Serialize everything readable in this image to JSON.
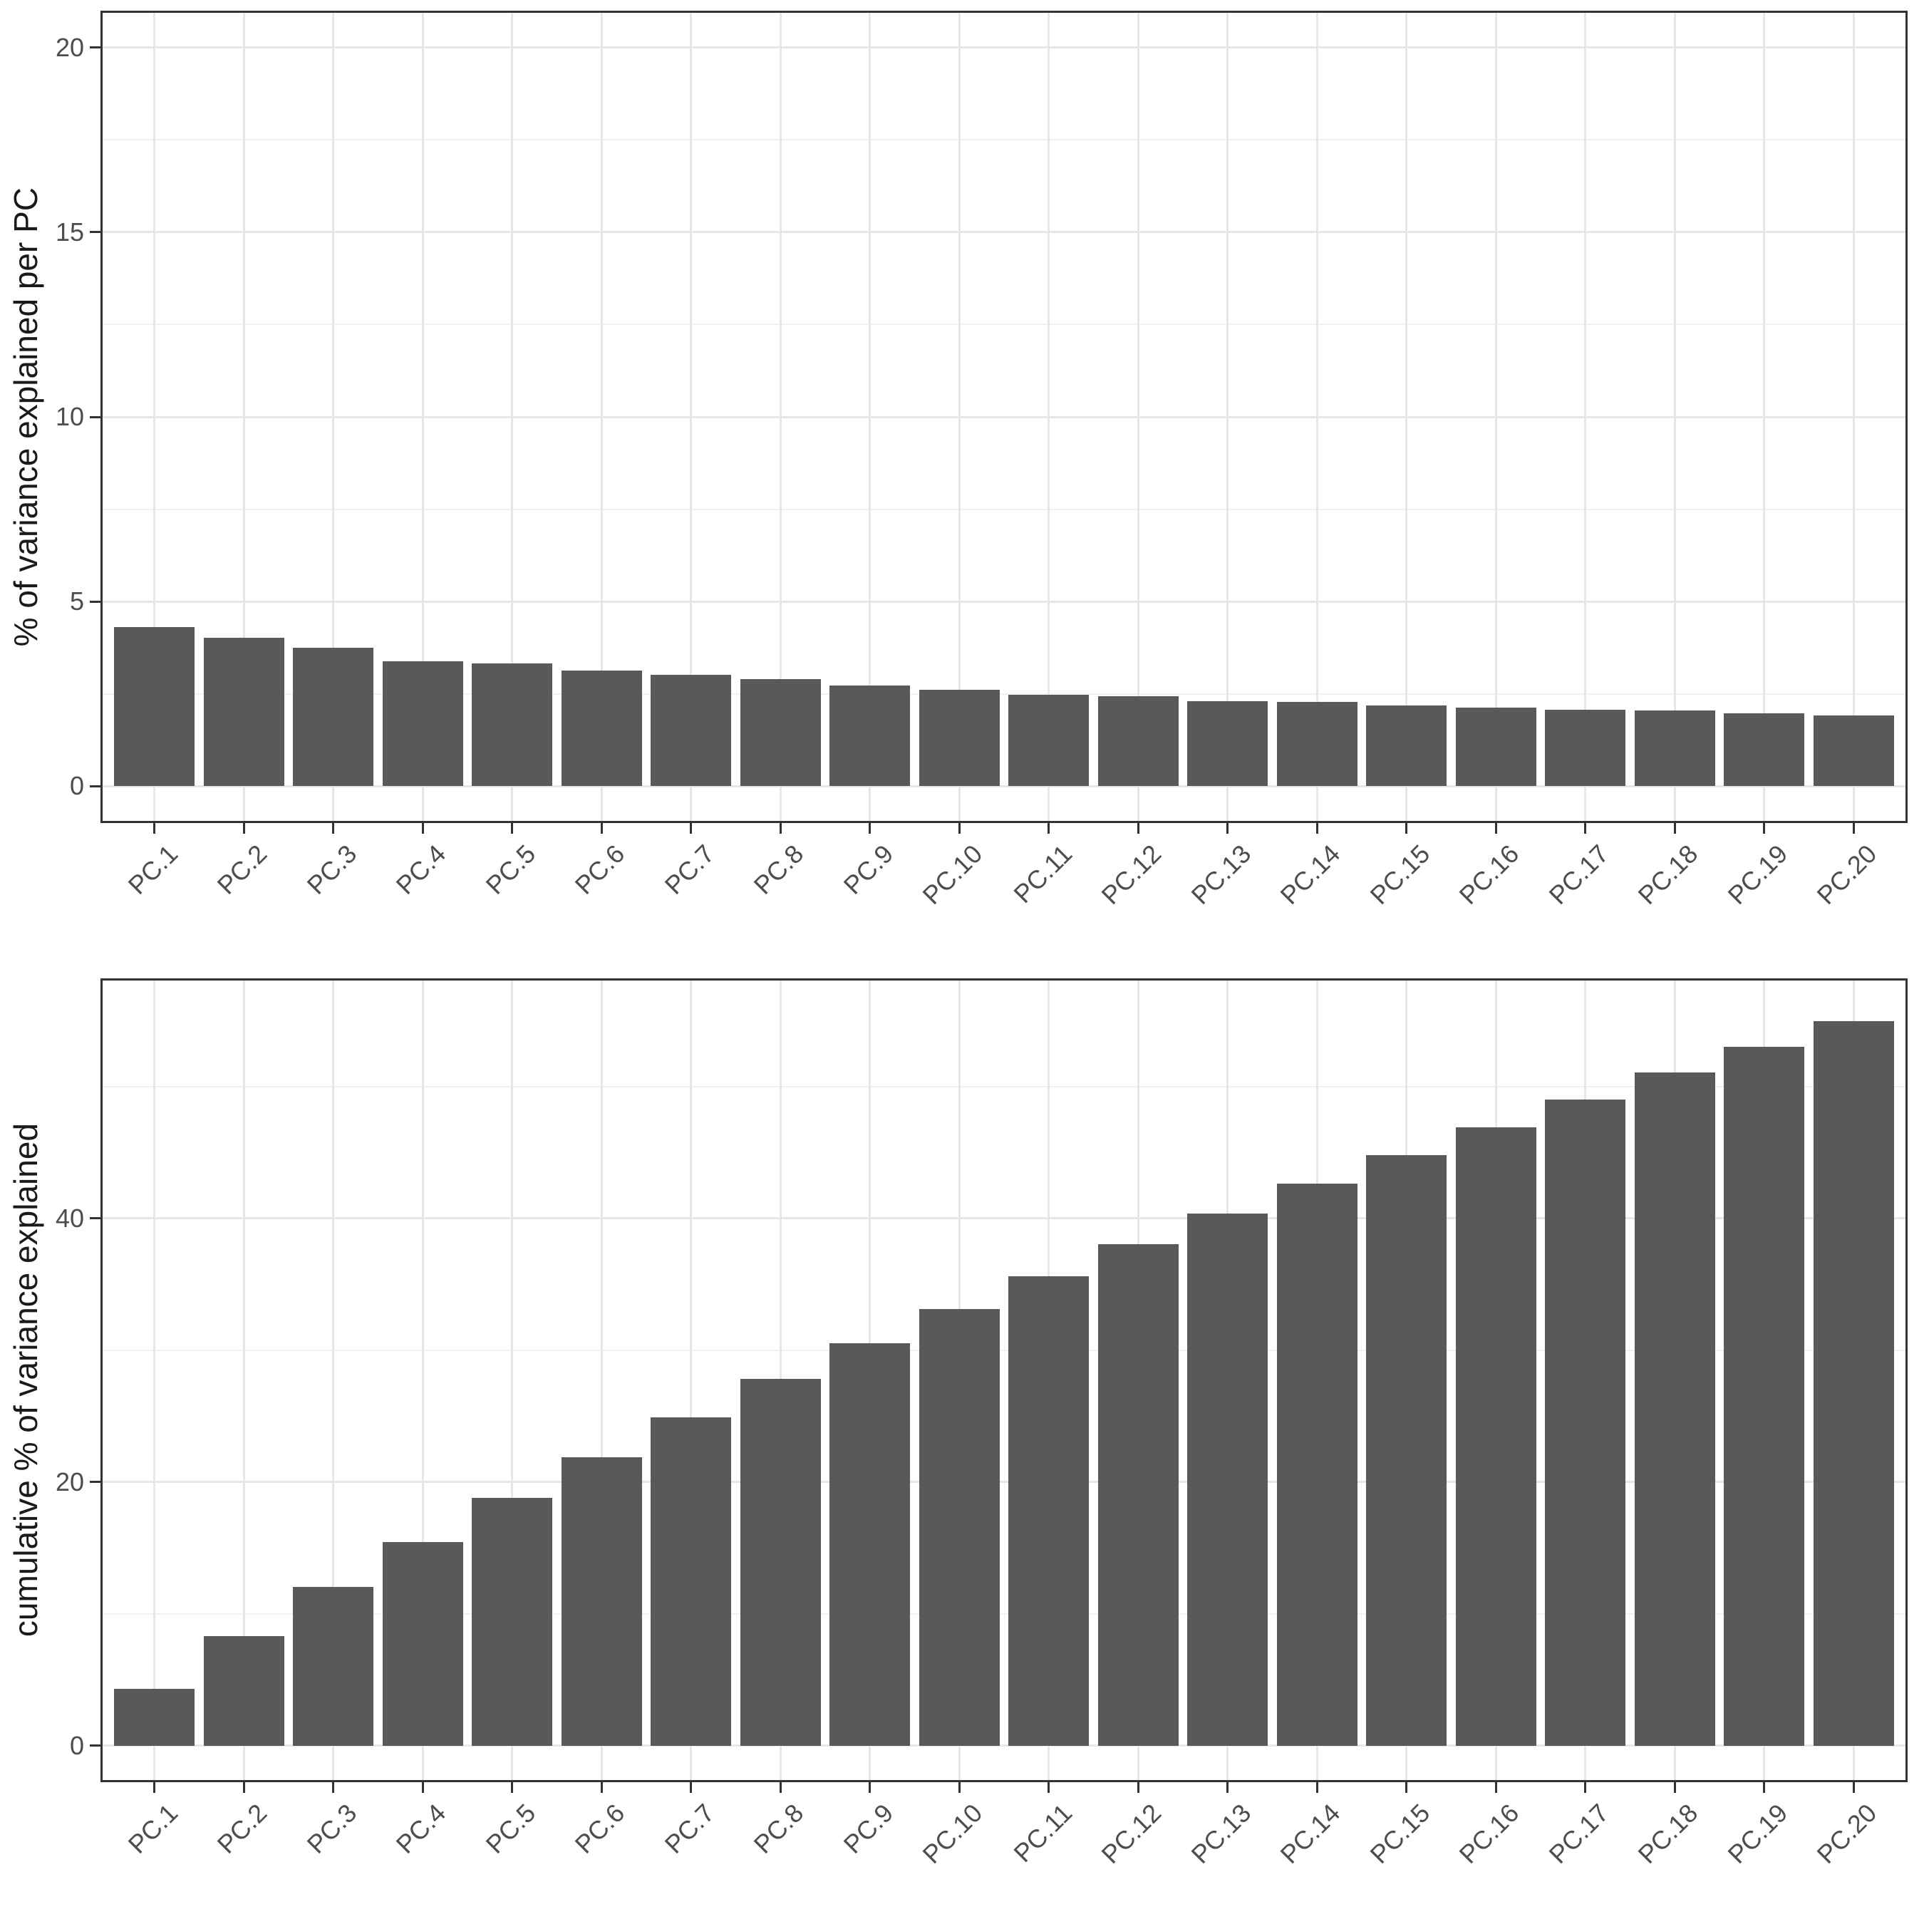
{
  "colors": {
    "bar_fill": "#595959",
    "panel_border": "#333333",
    "grid_major": "#E7E7E7",
    "grid_minor": "#F1F1F1",
    "tick_mark": "#333333",
    "tick_label": "#4D4D4D",
    "axis_title": "#1A1A1A",
    "background": "#FFFFFF"
  },
  "chart_data": [
    {
      "type": "bar",
      "title": "",
      "xlabel": "",
      "ylabel": "% of variance explained per PC",
      "categories": [
        "PC.1",
        "PC.2",
        "PC.3",
        "PC.4",
        "PC.5",
        "PC.6",
        "PC.7",
        "PC.8",
        "PC.9",
        "PC.10",
        "PC.11",
        "PC.12",
        "PC.13",
        "PC.14",
        "PC.15",
        "PC.16",
        "PC.17",
        "PC.18",
        "PC.19",
        "PC.20"
      ],
      "values": [
        4.31,
        4.02,
        3.74,
        3.38,
        3.33,
        3.13,
        3.02,
        2.89,
        2.72,
        2.6,
        2.47,
        2.43,
        2.3,
        2.28,
        2.19,
        2.12,
        2.07,
        2.05,
        1.98,
        1.92
      ],
      "ylim": [
        0,
        20
      ],
      "y_major_ticks": [
        0,
        5,
        10,
        15,
        20
      ],
      "y_minor_gridlines": [
        2.5,
        7.5,
        12.5,
        17.5
      ],
      "grid": "on",
      "legend_position": "none",
      "bar_color": "#595959"
    },
    {
      "type": "bar",
      "title": "",
      "xlabel": "",
      "ylabel": "cumulative % of variance explained",
      "categories": [
        "PC.1",
        "PC.2",
        "PC.3",
        "PC.4",
        "PC.5",
        "PC.6",
        "PC.7",
        "PC.8",
        "PC.9",
        "PC.10",
        "PC.11",
        "PC.12",
        "PC.13",
        "PC.14",
        "PC.15",
        "PC.16",
        "PC.17",
        "PC.18",
        "PC.19",
        "PC.20"
      ],
      "values": [
        4.31,
        8.33,
        12.07,
        15.45,
        18.78,
        21.91,
        24.93,
        27.82,
        30.54,
        33.14,
        35.61,
        38.04,
        40.34,
        42.62,
        44.81,
        46.93,
        49.0,
        51.05,
        53.03,
        54.95
      ],
      "ylim": [
        0,
        55
      ],
      "y_major_ticks": [
        0,
        20,
        40
      ],
      "y_minor_gridlines": [
        10,
        30,
        50
      ],
      "grid": "on",
      "legend_position": "none",
      "bar_color": "#595959"
    }
  ]
}
